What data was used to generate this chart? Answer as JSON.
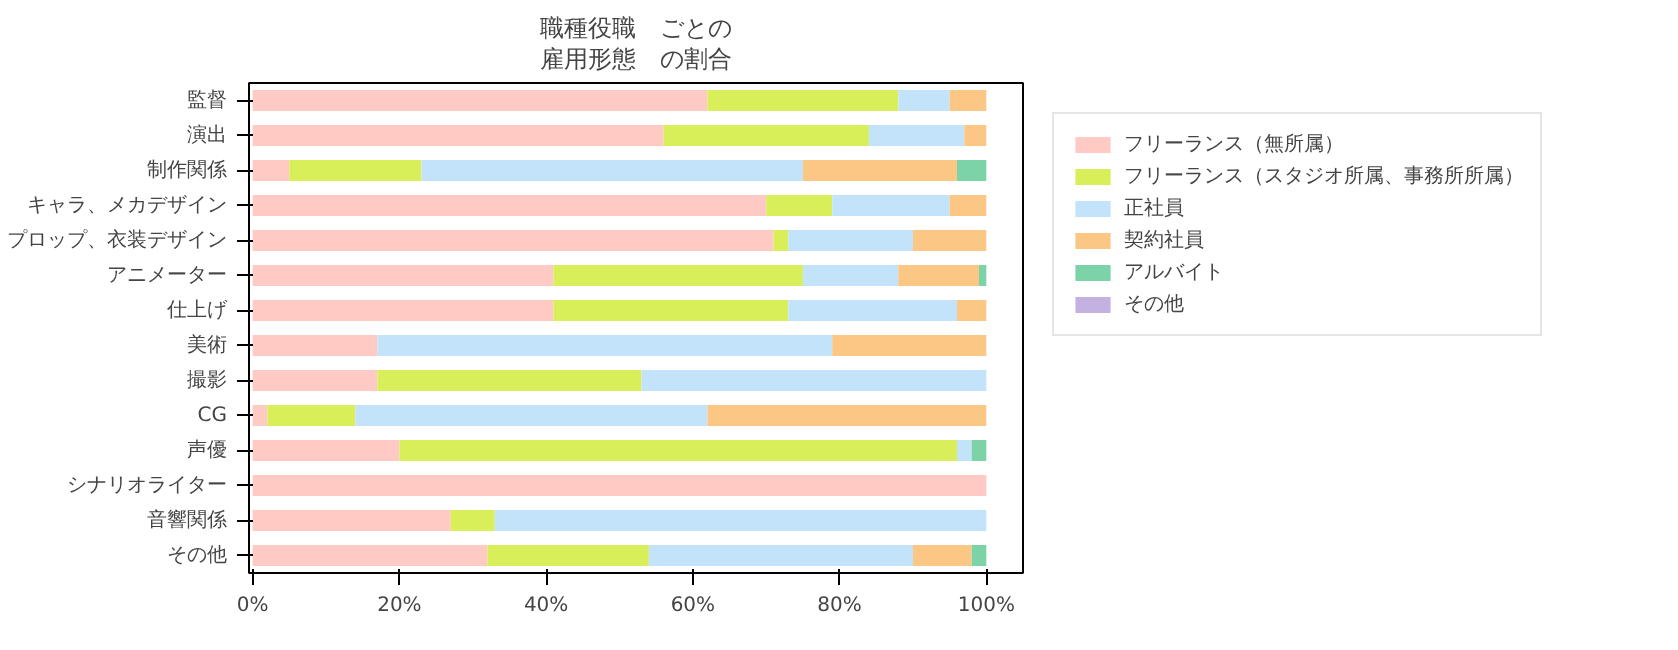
{
  "chart_data": {
    "type": "bar",
    "orientation": "horizontal",
    "stacked": true,
    "title": "職種役職　ごとの雇用形態　の割合",
    "categories": [
      "監督",
      "演出",
      "制作関係",
      "キャラ、メカデザイン",
      "プロップ、衣装デザイン",
      "アニメーター",
      "仕上げ",
      "美術",
      "撮影",
      "CG",
      "声優",
      "シナリオライター",
      "音響関係",
      "その他"
    ],
    "series": [
      {
        "name": "フリーランス（無所属）",
        "color": "#ffc9c4",
        "values": [
          62,
          56,
          5,
          70,
          71,
          41,
          41,
          17,
          17,
          2,
          20,
          100,
          27,
          32
        ]
      },
      {
        "name": "フリーランス（スタジオ所属、事務所所属）",
        "color": "#d9ef5a",
        "values": [
          26,
          28,
          18,
          9,
          2,
          34,
          32,
          0,
          36,
          12,
          76,
          0,
          6,
          22
        ]
      },
      {
        "name": "正社員",
        "color": "#c3e3fb",
        "values": [
          7,
          13,
          52,
          16,
          17,
          13,
          23,
          62,
          47,
          48,
          2,
          0,
          67,
          36
        ]
      },
      {
        "name": "契約社員",
        "color": "#fcc784",
        "values": [
          5,
          3,
          21,
          5,
          10,
          11,
          4,
          21,
          0,
          38,
          0,
          0,
          0,
          8
        ]
      },
      {
        "name": "アルバイト",
        "color": "#7dd3a8",
        "values": [
          0,
          0,
          4,
          0,
          0,
          1,
          0,
          0,
          0,
          0,
          2,
          0,
          0,
          2
        ]
      },
      {
        "name": "その他",
        "color": "#c3b1e1",
        "values": [
          0,
          0,
          0,
          0,
          0,
          0,
          0,
          0,
          0,
          0,
          0,
          0,
          0,
          0
        ]
      }
    ],
    "xlim": [
      -0.5,
      105
    ],
    "xticks": [
      {
        "value": 0,
        "label": "0%"
      },
      {
        "value": 20,
        "label": "20%"
      },
      {
        "value": 40,
        "label": "40%"
      },
      {
        "value": 60,
        "label": "60%"
      },
      {
        "value": 80,
        "label": "80%"
      },
      {
        "value": 100,
        "label": "100%"
      }
    ],
    "grid": false,
    "legend": "top right"
  }
}
